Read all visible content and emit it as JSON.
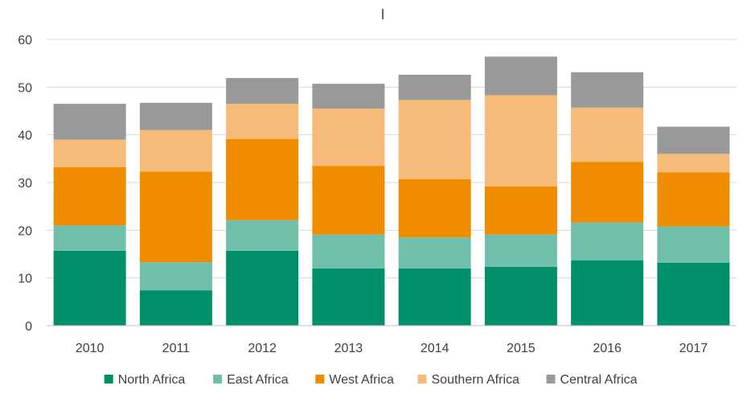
{
  "chart_data": {
    "type": "bar",
    "stacked": true,
    "categories": [
      "2010",
      "2011",
      "2012",
      "2013",
      "2014",
      "2015",
      "2016",
      "2017"
    ],
    "series": [
      {
        "name": "North Africa",
        "color": "#008f6b",
        "values": [
          15.7,
          7.4,
          15.7,
          12.0,
          12.0,
          12.3,
          13.7,
          13.2
        ]
      },
      {
        "name": "East Africa",
        "color": "#6fbfaa",
        "values": [
          5.3,
          5.9,
          6.4,
          7.1,
          6.5,
          6.8,
          7.9,
          7.6
        ]
      },
      {
        "name": "West Africa",
        "color": "#ef8c00",
        "values": [
          12.2,
          19.0,
          17.0,
          14.4,
          12.2,
          10.1,
          12.7,
          11.3
        ]
      },
      {
        "name": "Southern Africa",
        "color": "#f6bb78",
        "values": [
          5.8,
          8.7,
          7.4,
          12.0,
          16.6,
          19.1,
          11.4,
          3.9
        ]
      },
      {
        "name": "Central Africa",
        "color": "#999999",
        "values": [
          7.5,
          5.7,
          5.4,
          5.2,
          5.3,
          8.1,
          7.4,
          5.7
        ]
      }
    ],
    "yticks": [
      "0",
      "10",
      "20",
      "30",
      "40",
      "50",
      "60"
    ],
    "ylim": [
      0,
      60
    ],
    "grid": true,
    "legend_position": "bottom",
    "title": "",
    "xlabel": "",
    "ylabel": ""
  }
}
